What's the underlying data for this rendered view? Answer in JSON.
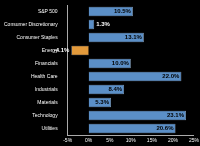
{
  "chart_data": {
    "type": "bar",
    "orientation": "horizontal",
    "categories": [
      "S&P 500",
      "Consumer Discretionary",
      "Consumer Staples",
      "Energy",
      "Financials",
      "Health Care",
      "Industrials",
      "Materials",
      "Technology",
      "Utilities"
    ],
    "values": [
      10.5,
      1.3,
      13.1,
      -4.1,
      10.0,
      22.0,
      8.4,
      5.3,
      23.1,
      20.6
    ],
    "value_labels": [
      "10.5%",
      "1.3%",
      "13.1%",
      "-4.1%",
      "10.0%",
      "22.0%",
      "8.4%",
      "5.3%",
      "23.1%",
      "20.6%"
    ],
    "colors": [
      "#5b8fc7",
      "#5b8fc7",
      "#5b8fc7",
      "#e39a3b",
      "#5b8fc7",
      "#5b8fc7",
      "#5b8fc7",
      "#5b8fc7",
      "#5b8fc7",
      "#5b8fc7"
    ],
    "xlim": [
      -5,
      25
    ],
    "xticks": [
      {
        "value": -5,
        "label": "-5%"
      },
      {
        "value": 0,
        "label": "0%"
      },
      {
        "value": 5,
        "label": "5%"
      },
      {
        "value": 10,
        "label": "10%"
      },
      {
        "value": 15,
        "label": "15%"
      },
      {
        "value": 20,
        "label": "20%"
      },
      {
        "value": 25,
        "label": "25%"
      }
    ],
    "grid": false,
    "data_labels": true
  }
}
